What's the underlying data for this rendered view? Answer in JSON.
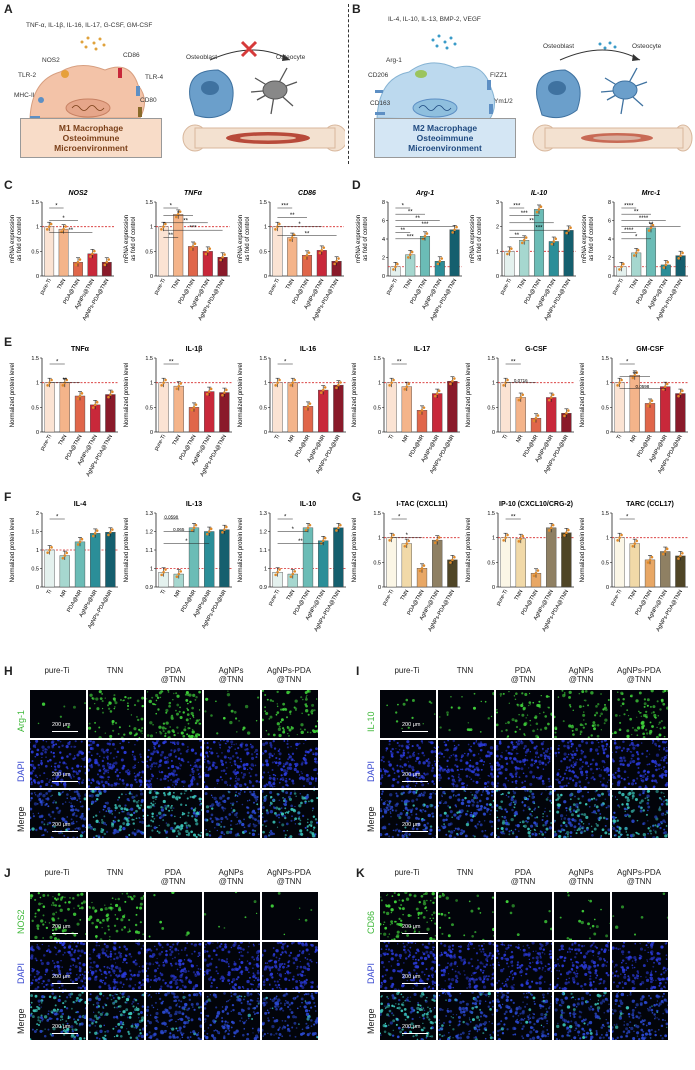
{
  "panels": {
    "A": {
      "label": "A",
      "cytokines": "TNF-α, IL-1β, IL-16, IL-17, G-CSF, GM-CSF",
      "receptors": [
        "NOS2",
        "TLR-2",
        "MHC-II",
        "CD86",
        "TLR-4",
        "CD80"
      ],
      "box_lines": [
        "M1 Macrophage",
        "Osteoimmune",
        "Microenvironment"
      ],
      "osteoblast": "Osteoblast",
      "osteocyte": "Osteocyte",
      "colors": {
        "box": "#f8dcc8",
        "cell": "#f3c3a8",
        "arrow": "#d63a3a"
      }
    },
    "B": {
      "label": "B",
      "cytokines": "IL-4, IL-10, IL-13, BMP-2, VEGF",
      "receptors": [
        "Arg-1",
        "CD206",
        "CD163",
        "FIZZ1",
        "Ym1/2"
      ],
      "box_lines": [
        "M2 Macrophage",
        "Osteoimmune",
        "Microenvironment"
      ],
      "osteoblast": "Osteoblast",
      "osteocyte": "Osteocyte",
      "colors": {
        "box": "#d4e6f4",
        "cell": "#bcd9ee"
      }
    },
    "C": {
      "label": "C"
    },
    "D": {
      "label": "D"
    },
    "E": {
      "label": "E"
    },
    "F": {
      "label": "F"
    },
    "G": {
      "label": "G"
    },
    "H": {
      "label": "H",
      "marker": "Arg-1",
      "rows": [
        "Arg-1",
        "DAPI",
        "Merge"
      ],
      "cols": [
        "pure-Ti",
        "TNN",
        "PDA\n@TNN",
        "AgNPs\n@TNN",
        "AgNPs-PDA\n@TNN"
      ],
      "scale": "200 μm"
    },
    "I": {
      "label": "I",
      "marker": "IL-10",
      "rows": [
        "IL-10",
        "DAPI",
        "Merge"
      ],
      "cols": [
        "pure-Ti",
        "TNN",
        "PDA\n@TNN",
        "AgNPs\n@TNN",
        "AgNPs-PDA\n@TNN"
      ],
      "scale": "200 μm"
    },
    "J": {
      "label": "J",
      "marker": "NOS2",
      "rows": [
        "NOS2",
        "DAPI",
        "Merge"
      ],
      "cols": [
        "pure-Ti",
        "TNN",
        "PDA\n@TNN",
        "AgNPs\n@TNN",
        "AgNPs-PDA\n@TNN"
      ],
      "scale": "200 μm"
    },
    "K": {
      "label": "K",
      "marker": "CD86",
      "rows": [
        "CD86",
        "DAPI",
        "Merge"
      ],
      "cols": [
        "pure-Ti",
        "TNN",
        "PDA\n@TNN",
        "AgNPs\n@TNN",
        "AgNPs-PDA\n@TNN"
      ],
      "scale": "200 μm"
    }
  },
  "chart_data": [
    {
      "id": "C1",
      "type": "bar",
      "title": "NOS2",
      "italic": true,
      "ylabel": "mRNA expression\nas fold of control",
      "categories": [
        "pure-Ti",
        "TNN",
        "PDA@TNN",
        "AgNPs@TNN",
        "AgNPs-PDA@TNN"
      ],
      "values": [
        1.0,
        0.95,
        0.28,
        0.45,
        0.28
      ],
      "ylim": [
        0,
        1.5
      ],
      "yticks": [
        0.0,
        0.5,
        1.0,
        1.5
      ],
      "colors": [
        "#fbe3d3",
        "#f4b48a",
        "#e0664a",
        "#c8283a",
        "#8a1a2a"
      ],
      "sig": [
        "*",
        "*",
        "**"
      ]
    },
    {
      "id": "C2",
      "type": "bar",
      "title": "TNFα",
      "italic": true,
      "ylabel": "mRNA expression\nas fold of control",
      "categories": [
        "pure-Ti",
        "TNN",
        "PDA@TNN",
        "AgNPs@TNN",
        "AgNPs-PDA@TNN"
      ],
      "values": [
        1.0,
        1.25,
        0.6,
        0.5,
        0.38
      ],
      "ylim": [
        0,
        1.5
      ],
      "yticks": [
        0.0,
        0.5,
        1.0,
        1.5
      ],
      "colors": [
        "#fbe3d3",
        "#f4b48a",
        "#e0664a",
        "#c8283a",
        "#8a1a2a"
      ],
      "sig": [
        "*",
        "*",
        "**",
        "***",
        "**"
      ]
    },
    {
      "id": "C3",
      "type": "bar",
      "title": "CD86",
      "italic": true,
      "ylabel": "mRNA expression\nas fold of control",
      "categories": [
        "pure-Ti",
        "TNN",
        "PDA@TNN",
        "AgNPs@TNN",
        "AgNPs-PDA@TNN"
      ],
      "values": [
        1.0,
        0.78,
        0.42,
        0.52,
        0.3
      ],
      "ylim": [
        0,
        1.5
      ],
      "yticks": [
        0.0,
        0.5,
        1.0,
        1.5
      ],
      "colors": [
        "#fbe3d3",
        "#f4b48a",
        "#e0664a",
        "#c8283a",
        "#8a1a2a"
      ],
      "sig": [
        "***",
        "**",
        "*",
        "**"
      ]
    },
    {
      "id": "D1",
      "type": "bar",
      "title": "Arg-1",
      "italic": true,
      "ylabel": "mRNA expression\nas fold of control",
      "categories": [
        "pure-Ti",
        "TNN",
        "PDA@TNN",
        "AgNPs@TNN",
        "AgNPs-PDA@TNN"
      ],
      "values": [
        1.0,
        2.3,
        4.3,
        1.6,
        5.0
      ],
      "ylim": [
        0,
        8
      ],
      "yticks": [
        0,
        2,
        4,
        6,
        8
      ],
      "colors": [
        "#e4f1ee",
        "#a6d7cf",
        "#6bbcb6",
        "#2b8e98",
        "#155f6e"
      ],
      "sig": [
        "*",
        "**",
        "**",
        "***",
        "**",
        "***"
      ]
    },
    {
      "id": "D2",
      "type": "bar",
      "title": "IL-10",
      "italic": true,
      "ylabel": "mRNA expression\nas fold of control",
      "categories": [
        "pure-Ti",
        "TNN",
        "PDA@TNN",
        "AgNPs@TNN",
        "AgNPs-PDA@TNN"
      ],
      "values": [
        1.0,
        1.45,
        2.7,
        1.4,
        1.85
      ],
      "ylim": [
        0,
        3
      ],
      "yticks": [
        0,
        1,
        2,
        3
      ],
      "colors": [
        "#e4f1ee",
        "#a6d7cf",
        "#6bbcb6",
        "#2b8e98",
        "#155f6e"
      ],
      "sig": [
        "***",
        "***",
        "**",
        "***",
        "**"
      ]
    },
    {
      "id": "D3",
      "type": "bar",
      "title": "Mrc-1",
      "italic": true,
      "ylabel": "mRNA expression\nas fold of control",
      "categories": [
        "pure-Ti",
        "TNN",
        "PDA@TNN",
        "AgNPs@TNN",
        "AgNPs-PDA@TNN"
      ],
      "values": [
        1.0,
        2.5,
        5.2,
        1.2,
        2.2
      ],
      "ylim": [
        0,
        8
      ],
      "yticks": [
        0,
        2,
        4,
        6,
        8
      ],
      "colors": [
        "#e4f1ee",
        "#a6d7cf",
        "#6bbcb6",
        "#2b8e98",
        "#155f6e"
      ],
      "sig": [
        "****",
        "**",
        "****",
        "**",
        "****",
        "*"
      ]
    },
    {
      "id": "E1",
      "type": "bar",
      "title": "TNFα",
      "italic": false,
      "ylabel": "Normalized protein level",
      "categories": [
        "pure-Ti",
        "TNN",
        "PDA@TNN",
        "AgNPs@TNN",
        "AgNPs-PDA@TNN"
      ],
      "values": [
        1.0,
        1.0,
        0.73,
        0.55,
        0.76
      ],
      "ylim": [
        0,
        1.5
      ],
      "yticks": [
        0.0,
        0.5,
        1.0,
        1.5
      ],
      "colors": [
        "#fbe3d3",
        "#f4b48a",
        "#e0664a",
        "#c8283a",
        "#8a1a2a"
      ],
      "sig": [
        "*",
        "**"
      ]
    },
    {
      "id": "E2",
      "type": "bar",
      "title": "IL-1β",
      "italic": false,
      "ylabel": "Normalized protein level",
      "categories": [
        "pure-Ti",
        "TNN",
        "PDA@TNN",
        "AgNPs@TNN",
        "AgNPs-PDA@TNN"
      ],
      "values": [
        1.0,
        0.93,
        0.5,
        0.82,
        0.8
      ],
      "ylim": [
        0,
        1.5
      ],
      "yticks": [
        0.0,
        0.5,
        1.0,
        1.5
      ],
      "colors": [
        "#fbe3d3",
        "#f4b48a",
        "#e0664a",
        "#c8283a",
        "#8a1a2a"
      ],
      "sig": [
        "**"
      ]
    },
    {
      "id": "E3",
      "type": "bar",
      "title": "IL-16",
      "italic": false,
      "ylabel": "Normalized protein level",
      "categories": [
        "Ti",
        "NR",
        "PDA@NR",
        "AgNPs@NR",
        "AgNPs-PDA@NR"
      ],
      "values": [
        1.0,
        1.0,
        0.52,
        0.85,
        0.95
      ],
      "ylim": [
        0,
        1.5
      ],
      "yticks": [
        0.0,
        0.5,
        1.0,
        1.5
      ],
      "colors": [
        "#fbe3d3",
        "#f4b48a",
        "#e0664a",
        "#c8283a",
        "#8a1a2a"
      ],
      "sig": [
        "*"
      ]
    },
    {
      "id": "E4",
      "type": "bar",
      "title": "IL-17",
      "italic": false,
      "ylabel": "Normalized protein level",
      "categories": [
        "Ti",
        "NR",
        "PDA@NR",
        "AgNPs@NR",
        "AgNPs-PDA@NR"
      ],
      "values": [
        1.0,
        0.92,
        0.44,
        0.78,
        1.03
      ],
      "ylim": [
        0,
        1.5
      ],
      "yticks": [
        0.0,
        0.5,
        1.0,
        1.5
      ],
      "colors": [
        "#fbe3d3",
        "#f4b48a",
        "#e0664a",
        "#c8283a",
        "#8a1a2a"
      ],
      "sig": [
        "**"
      ]
    },
    {
      "id": "E5",
      "type": "bar",
      "title": "G-CSF",
      "italic": false,
      "ylabel": "Normalized protein level",
      "categories": [
        "Ti",
        "NR",
        "PDA@NR",
        "AgNPs@NR",
        "AgNPs-PDA@NR"
      ],
      "values": [
        1.0,
        0.7,
        0.28,
        0.7,
        0.38
      ],
      "ylim": [
        0,
        1.5
      ],
      "yticks": [
        0.0,
        0.5,
        1.0,
        1.5
      ],
      "colors": [
        "#fbe3d3",
        "#f4b48a",
        "#e0664a",
        "#c8283a",
        "#8a1a2a"
      ],
      "sig": [
        "**",
        "0.0716"
      ]
    },
    {
      "id": "E6",
      "type": "bar",
      "title": "GM-CSF",
      "italic": false,
      "ylabel": "Normalized protein level",
      "categories": [
        "Ti",
        "NR",
        "PDA@NR",
        "AgNPs@NR",
        "AgNPs-PDA@NR"
      ],
      "values": [
        1.0,
        1.15,
        0.58,
        0.92,
        0.78
      ],
      "ylim": [
        0,
        1.5
      ],
      "yticks": [
        0.0,
        0.5,
        1.0,
        1.5
      ],
      "colors": [
        "#fbe3d3",
        "#f4b48a",
        "#e0664a",
        "#c8283a",
        "#8a1a2a"
      ],
      "sig": [
        "*",
        "**",
        "0.0598"
      ]
    },
    {
      "id": "F1",
      "type": "bar",
      "title": "IL-4",
      "italic": false,
      "ylabel": "Normalized protein level",
      "categories": [
        "Ti",
        "NR",
        "PDA@NR",
        "AgNPs@NR",
        "AgNPs-PDA@NR"
      ],
      "values": [
        1.0,
        0.85,
        1.22,
        1.45,
        1.48
      ],
      "ylim": [
        0,
        2.0
      ],
      "yticks": [
        0.0,
        0.5,
        1.0,
        1.5,
        2.0
      ],
      "colors": [
        "#e4f1ee",
        "#a6d7cf",
        "#6bbcb6",
        "#2b8e98",
        "#155f6e"
      ],
      "sig": [
        "*"
      ]
    },
    {
      "id": "F2",
      "type": "bar",
      "title": "IL-13",
      "italic": false,
      "ylabel": "Normalized protein level",
      "categories": [
        "Ti",
        "NR",
        "PDA@NR",
        "AgNPs@NR",
        "AgNPs-PDA@NR"
      ],
      "values": [
        0.98,
        0.97,
        1.22,
        1.2,
        1.21
      ],
      "ylim": [
        0.9,
        1.3
      ],
      "yticks": [
        0.9,
        1.0,
        1.1,
        1.2,
        1.3
      ],
      "colors": [
        "#e4f1ee",
        "#a6d7cf",
        "#6bbcb6",
        "#2b8e98",
        "#155f6e"
      ],
      "sig": [
        "0.0598",
        "0.065",
        "*"
      ]
    },
    {
      "id": "F3",
      "type": "bar",
      "title": "IL-10",
      "italic": false,
      "ylabel": "Normalized protein level",
      "categories": [
        "pure-Ti",
        "TNN",
        "PDA@TNN",
        "AgNPs@TNN",
        "AgNPs-PDA@TNN"
      ],
      "values": [
        0.98,
        0.97,
        1.22,
        1.15,
        1.22
      ],
      "ylim": [
        0.9,
        1.3
      ],
      "yticks": [
        0.9,
        1.0,
        1.1,
        1.2,
        1.3
      ],
      "colors": [
        "#e4f1ee",
        "#a6d7cf",
        "#6bbcb6",
        "#2b8e98",
        "#155f6e"
      ],
      "sig": [
        "*",
        "*",
        "**"
      ]
    },
    {
      "id": "G1",
      "type": "bar",
      "title": "I-TAC (CXCL11)",
      "italic": false,
      "ylabel": "Normalized protein level",
      "categories": [
        "pure-Ti",
        "TNN",
        "PDA@TNN",
        "AgNPs@TNN",
        "AgNPs-PDA@TNN"
      ],
      "values": [
        1.0,
        0.88,
        0.38,
        0.95,
        0.55
      ],
      "ylim": [
        0,
        1.5
      ],
      "yticks": [
        0.0,
        0.5,
        1.0,
        1.5
      ],
      "colors": [
        "#fbf6e6",
        "#f1d9a8",
        "#e8a765",
        "#8f8063",
        "#4f4526"
      ],
      "sig": [
        "*",
        "*"
      ]
    },
    {
      "id": "G2",
      "type": "bar",
      "title": "IP-10 (CXCL10/CRG-2)",
      "italic": false,
      "ylabel": "Normalized protein level",
      "categories": [
        "pure-Ti",
        "TNN",
        "PDA@TNN",
        "AgNPs@TNN",
        "AgNPs-PDA@TNN"
      ],
      "values": [
        1.0,
        0.98,
        0.28,
        1.2,
        1.1
      ],
      "ylim": [
        0,
        1.5
      ],
      "yticks": [
        0.0,
        0.5,
        1.0,
        1.5
      ],
      "colors": [
        "#fbf6e6",
        "#f1d9a8",
        "#e8a765",
        "#8f8063",
        "#4f4526"
      ],
      "sig": [
        "**"
      ]
    },
    {
      "id": "G3",
      "type": "bar",
      "title": "TARC (CCL17)",
      "italic": false,
      "ylabel": "Normalized protein level",
      "categories": [
        "pure-Ti",
        "TNN",
        "PDA@TNN",
        "AgNPs@TNN",
        "AgNPs-PDA@TNN"
      ],
      "values": [
        1.0,
        0.88,
        0.55,
        0.72,
        0.63
      ],
      "ylim": [
        0,
        1.5
      ],
      "yticks": [
        0.0,
        0.5,
        1.0,
        1.5
      ],
      "colors": [
        "#fbf6e6",
        "#f1d9a8",
        "#e8a765",
        "#8f8063",
        "#4f4526"
      ],
      "sig": [
        "*"
      ]
    }
  ]
}
